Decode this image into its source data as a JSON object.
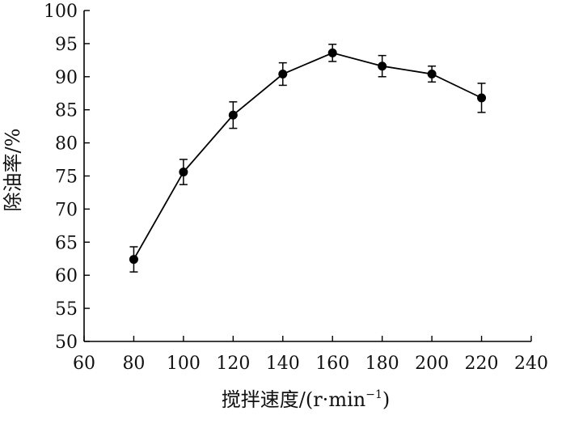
{
  "chart_data": {
    "type": "line",
    "title": "",
    "xlabel": "搅拌速度/(r·min",
    "xlabel_sup": "−1",
    "xlabel_end": ")",
    "ylabel": "除油率/%",
    "xlim": [
      60,
      240
    ],
    "ylim": [
      50,
      100
    ],
    "xticks": [
      60,
      80,
      100,
      120,
      140,
      160,
      180,
      200,
      220,
      240
    ],
    "yticks": [
      50,
      55,
      60,
      65,
      70,
      75,
      80,
      85,
      90,
      95,
      100
    ],
    "grid": false,
    "legend": "none",
    "series": [
      {
        "x": [
          80,
          100,
          120,
          140,
          160,
          180,
          200,
          220
        ],
        "y": [
          62.4,
          75.6,
          84.2,
          90.4,
          93.6,
          91.6,
          90.4,
          86.8
        ],
        "error": [
          1.9,
          1.9,
          2.0,
          1.7,
          1.3,
          1.6,
          1.2,
          2.2
        ],
        "color": "#000000",
        "marker": "circle"
      }
    ]
  }
}
